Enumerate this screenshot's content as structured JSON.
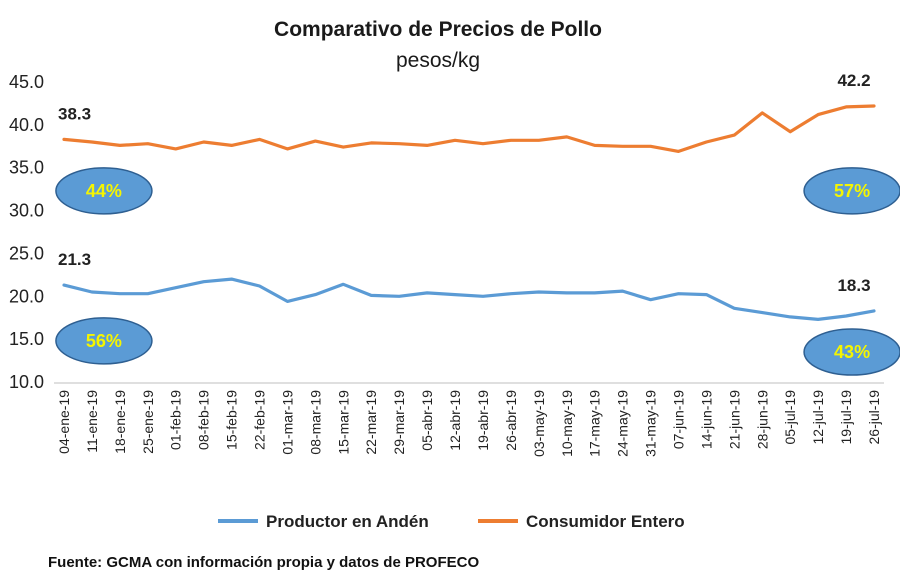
{
  "chart_data": {
    "type": "line",
    "title": "Comparativo de Precios de Pollo",
    "subtitle": "pesos/kg",
    "ylim": [
      10.0,
      45.0
    ],
    "yticks": [
      "10.0",
      "15.0",
      "20.0",
      "25.0",
      "30.0",
      "35.0",
      "40.0",
      "45.0"
    ],
    "ytick_values": [
      10,
      15,
      20,
      25,
      30,
      35,
      40,
      45
    ],
    "categories": [
      "04-ene-19",
      "11-ene-19",
      "18-ene-19",
      "25-ene-19",
      "01-feb-19",
      "08-feb-19",
      "15-feb-19",
      "22-feb-19",
      "01-mar-19",
      "08-mar-19",
      "15-mar-19",
      "22-mar-19",
      "29-mar-19",
      "05-abr-19",
      "12-abr-19",
      "19-abr-19",
      "26-abr-19",
      "03-may-19",
      "10-may-19",
      "17-may-19",
      "24-may-19",
      "31-may-19",
      "07-jun-19",
      "14-jun-19",
      "21-jun-19",
      "28-jun-19",
      "05-jul-19",
      "12-jul-19",
      "19-jul-19",
      "26-jul-19"
    ],
    "series": [
      {
        "name": "Productor en Andén",
        "color": "#5b9bd5",
        "values": [
          21.3,
          20.5,
          20.3,
          20.3,
          21.0,
          21.7,
          22.0,
          21.2,
          19.4,
          20.2,
          21.4,
          20.1,
          20.0,
          20.4,
          20.2,
          20.0,
          20.3,
          20.5,
          20.4,
          20.4,
          20.6,
          19.6,
          20.3,
          20.2,
          18.6,
          18.1,
          17.6,
          17.3,
          17.7,
          18.3
        ]
      },
      {
        "name": "Consumidor Entero",
        "color": "#ed7d31",
        "values": [
          38.3,
          38.0,
          37.6,
          37.8,
          37.2,
          38.0,
          37.6,
          38.3,
          37.2,
          38.1,
          37.4,
          37.9,
          37.8,
          37.6,
          38.2,
          37.8,
          38.2,
          38.2,
          38.6,
          37.6,
          37.5,
          37.5,
          36.9,
          38.0,
          38.8,
          41.4,
          39.2,
          41.2,
          42.1,
          42.2
        ]
      }
    ],
    "data_labels": [
      {
        "series": 1,
        "index": 0,
        "text": "38.3"
      },
      {
        "series": 1,
        "index": 29,
        "text": "42.2"
      },
      {
        "series": 0,
        "index": 0,
        "text": "21.3"
      },
      {
        "series": 0,
        "index": 29,
        "text": "18.3"
      }
    ],
    "annotations": [
      {
        "text": "44%",
        "index": 1,
        "y": 32.3
      },
      {
        "text": "57%",
        "index": 28,
        "y": 32.3
      },
      {
        "text": "56%",
        "index": 1,
        "y": 14.8
      },
      {
        "text": "43%",
        "index": 28,
        "y": 13.5
      }
    ],
    "legend": {
      "position": "bottom"
    },
    "grid": false
  },
  "source_note": "Fuente: GCMA con información propia y datos de PROFECO"
}
